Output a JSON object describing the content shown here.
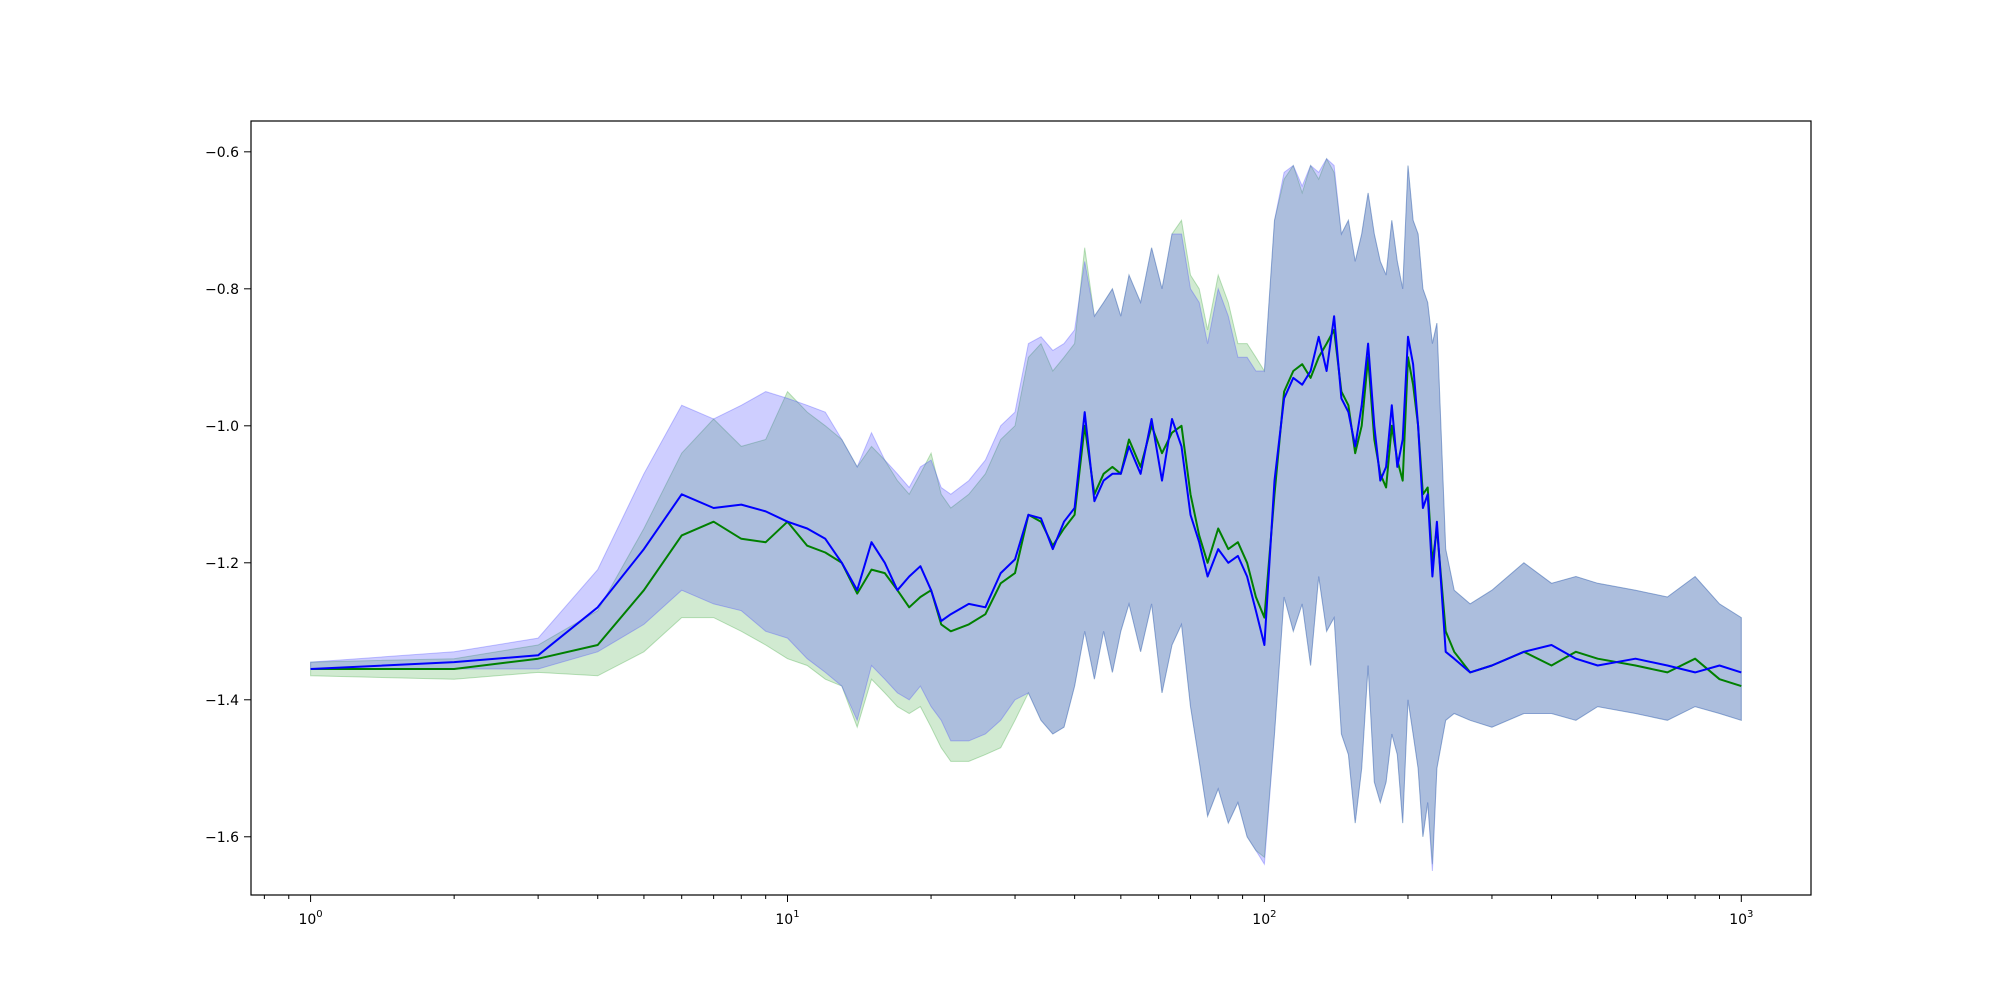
{
  "chart_data": {
    "type": "line",
    "title": "",
    "xlabel": "",
    "ylabel": "",
    "xscale": "log",
    "xlim": [
      0.75,
      1400
    ],
    "ylim": [
      -1.685,
      -0.555
    ],
    "grid": false,
    "legend": "none",
    "x_ticks": [
      {
        "base": "10",
        "exp": "0",
        "value": 1
      },
      {
        "base": "10",
        "exp": "1",
        "value": 10
      },
      {
        "base": "10",
        "exp": "2",
        "value": 100
      },
      {
        "base": "10",
        "exp": "3",
        "value": 1000
      }
    ],
    "y_ticks": [
      {
        "label": "−0.6",
        "value": -0.6
      },
      {
        "label": "−0.8",
        "value": -0.8
      },
      {
        "label": "−1.0",
        "value": -1.0
      },
      {
        "label": "−1.2",
        "value": -1.2
      },
      {
        "label": "−1.4",
        "value": -1.4
      },
      {
        "label": "−1.6",
        "value": -1.6
      }
    ],
    "series": [
      {
        "color": "#008000",
        "band_color": "#2ca02c",
        "x": [
          1,
          2,
          3,
          4,
          5,
          6,
          7,
          8,
          9,
          10,
          11,
          12,
          13,
          14,
          15,
          16,
          17,
          18,
          19,
          20,
          21,
          22,
          24,
          26,
          28,
          30,
          32,
          34,
          36,
          38,
          40,
          42,
          44,
          46,
          48,
          50,
          52,
          55,
          58,
          61,
          64,
          67,
          70,
          73,
          76,
          80,
          84,
          88,
          92,
          96,
          100,
          105,
          110,
          115,
          120,
          125,
          130,
          135,
          140,
          145,
          150,
          155,
          160,
          165,
          170,
          175,
          180,
          185,
          190,
          195,
          200,
          205,
          210,
          215,
          220,
          225,
          230,
          240,
          250,
          270,
          300,
          350,
          400,
          450,
          500,
          600,
          700,
          800,
          900,
          1000
        ],
        "y": [
          -1.355,
          -1.355,
          -1.34,
          -1.32,
          -1.24,
          -1.16,
          -1.14,
          -1.165,
          -1.17,
          -1.14,
          -1.175,
          -1.185,
          -1.2,
          -1.245,
          -1.21,
          -1.215,
          -1.24,
          -1.265,
          -1.25,
          -1.24,
          -1.29,
          -1.3,
          -1.29,
          -1.275,
          -1.23,
          -1.215,
          -1.13,
          -1.14,
          -1.175,
          -1.15,
          -1.13,
          -1.0,
          -1.1,
          -1.07,
          -1.06,
          -1.07,
          -1.02,
          -1.06,
          -1.0,
          -1.04,
          -1.01,
          -1.0,
          -1.1,
          -1.16,
          -1.2,
          -1.15,
          -1.18,
          -1.17,
          -1.2,
          -1.25,
          -1.28,
          -1.1,
          -0.95,
          -0.92,
          -0.91,
          -0.93,
          -0.9,
          -0.88,
          -0.86,
          -0.95,
          -0.97,
          -1.04,
          -1.0,
          -0.9,
          -1.02,
          -1.07,
          -1.09,
          -1.0,
          -1.05,
          -1.08,
          -0.9,
          -0.94,
          -1.0,
          -1.1,
          -1.09,
          -1.2,
          -1.15,
          -1.3,
          -1.33,
          -1.36,
          -1.35,
          -1.33,
          -1.35,
          -1.33,
          -1.34,
          -1.35,
          -1.36,
          -1.34,
          -1.37,
          -1.38
        ],
        "lower": [
          -1.365,
          -1.37,
          -1.36,
          -1.365,
          -1.33,
          -1.28,
          -1.28,
          -1.3,
          -1.32,
          -1.34,
          -1.35,
          -1.37,
          -1.38,
          -1.44,
          -1.37,
          -1.39,
          -1.41,
          -1.42,
          -1.41,
          -1.44,
          -1.47,
          -1.49,
          -1.49,
          -1.48,
          -1.47,
          -1.43,
          -1.39,
          -1.43,
          -1.45,
          -1.44,
          -1.38,
          -1.3,
          -1.37,
          -1.3,
          -1.36,
          -1.3,
          -1.26,
          -1.33,
          -1.26,
          -1.39,
          -1.32,
          -1.29,
          -1.41,
          -1.49,
          -1.57,
          -1.53,
          -1.58,
          -1.55,
          -1.6,
          -1.62,
          -1.63,
          -1.45,
          -1.25,
          -1.3,
          -1.26,
          -1.35,
          -1.22,
          -1.3,
          -1.28,
          -1.45,
          -1.48,
          -1.58,
          -1.5,
          -1.35,
          -1.52,
          -1.55,
          -1.52,
          -1.45,
          -1.48,
          -1.58,
          -1.4,
          -1.45,
          -1.5,
          -1.6,
          -1.55,
          -1.64,
          -1.5,
          -1.43,
          -1.42,
          -1.43,
          -1.44,
          -1.42,
          -1.42,
          -1.43,
          -1.41,
          -1.42,
          -1.43,
          -1.41,
          -1.42,
          -1.43
        ],
        "upper": [
          -1.345,
          -1.34,
          -1.32,
          -1.27,
          -1.15,
          -1.04,
          -0.99,
          -1.03,
          -1.02,
          -0.95,
          -0.98,
          -1.0,
          -1.02,
          -1.06,
          -1.03,
          -1.05,
          -1.08,
          -1.1,
          -1.07,
          -1.04,
          -1.1,
          -1.12,
          -1.1,
          -1.07,
          -1.02,
          -1.0,
          -0.9,
          -0.88,
          -0.92,
          -0.9,
          -0.88,
          -0.74,
          -0.84,
          -0.82,
          -0.8,
          -0.84,
          -0.78,
          -0.82,
          -0.74,
          -0.8,
          -0.72,
          -0.7,
          -0.78,
          -0.8,
          -0.86,
          -0.78,
          -0.82,
          -0.88,
          -0.88,
          -0.9,
          -0.92,
          -0.7,
          -0.64,
          -0.62,
          -0.66,
          -0.62,
          -0.64,
          -0.61,
          -0.63,
          -0.72,
          -0.7,
          -0.76,
          -0.72,
          -0.66,
          -0.72,
          -0.76,
          -0.78,
          -0.7,
          -0.76,
          -0.8,
          -0.62,
          -0.7,
          -0.72,
          -0.8,
          -0.82,
          -0.88,
          -0.85,
          -1.18,
          -1.24,
          -1.26,
          -1.24,
          -1.2,
          -1.23,
          -1.22,
          -1.23,
          -1.24,
          -1.25,
          -1.22,
          -1.26,
          -1.28
        ]
      },
      {
        "color": "#0000ff",
        "band_color": "#4040ff",
        "x": [
          1,
          2,
          3,
          4,
          5,
          6,
          7,
          8,
          9,
          10,
          11,
          12,
          13,
          14,
          15,
          16,
          17,
          18,
          19,
          20,
          21,
          22,
          24,
          26,
          28,
          30,
          32,
          34,
          36,
          38,
          40,
          42,
          44,
          46,
          48,
          50,
          52,
          55,
          58,
          61,
          64,
          67,
          70,
          73,
          76,
          80,
          84,
          88,
          92,
          96,
          100,
          105,
          110,
          115,
          120,
          125,
          130,
          135,
          140,
          145,
          150,
          155,
          160,
          165,
          170,
          175,
          180,
          185,
          190,
          195,
          200,
          205,
          210,
          215,
          220,
          225,
          230,
          240,
          250,
          270,
          300,
          350,
          400,
          450,
          500,
          600,
          700,
          800,
          900,
          1000
        ],
        "y": [
          -1.355,
          -1.345,
          -1.335,
          -1.265,
          -1.18,
          -1.1,
          -1.12,
          -1.115,
          -1.125,
          -1.14,
          -1.15,
          -1.165,
          -1.2,
          -1.24,
          -1.17,
          -1.2,
          -1.24,
          -1.22,
          -1.205,
          -1.24,
          -1.285,
          -1.275,
          -1.26,
          -1.265,
          -1.215,
          -1.195,
          -1.13,
          -1.135,
          -1.18,
          -1.14,
          -1.12,
          -0.98,
          -1.11,
          -1.08,
          -1.07,
          -1.07,
          -1.03,
          -1.07,
          -0.99,
          -1.08,
          -0.99,
          -1.03,
          -1.13,
          -1.17,
          -1.22,
          -1.18,
          -1.2,
          -1.19,
          -1.22,
          -1.27,
          -1.32,
          -1.08,
          -0.96,
          -0.93,
          -0.94,
          -0.92,
          -0.87,
          -0.92,
          -0.84,
          -0.96,
          -0.98,
          -1.03,
          -0.97,
          -0.88,
          -1.0,
          -1.08,
          -1.06,
          -0.97,
          -1.06,
          -1.02,
          -0.87,
          -0.91,
          -1.0,
          -1.12,
          -1.1,
          -1.22,
          -1.14,
          -1.33,
          -1.34,
          -1.36,
          -1.35,
          -1.33,
          -1.32,
          -1.34,
          -1.35,
          -1.34,
          -1.35,
          -1.36,
          -1.35,
          -1.36
        ],
        "lower": [
          -1.355,
          -1.355,
          -1.355,
          -1.33,
          -1.29,
          -1.24,
          -1.26,
          -1.27,
          -1.3,
          -1.31,
          -1.34,
          -1.36,
          -1.38,
          -1.43,
          -1.35,
          -1.37,
          -1.39,
          -1.4,
          -1.38,
          -1.41,
          -1.43,
          -1.46,
          -1.46,
          -1.45,
          -1.43,
          -1.4,
          -1.39,
          -1.43,
          -1.45,
          -1.44,
          -1.38,
          -1.3,
          -1.37,
          -1.3,
          -1.36,
          -1.3,
          -1.26,
          -1.33,
          -1.26,
          -1.39,
          -1.32,
          -1.29,
          -1.41,
          -1.49,
          -1.57,
          -1.53,
          -1.58,
          -1.55,
          -1.6,
          -1.62,
          -1.64,
          -1.45,
          -1.25,
          -1.3,
          -1.26,
          -1.35,
          -1.22,
          -1.3,
          -1.28,
          -1.45,
          -1.48,
          -1.58,
          -1.5,
          -1.35,
          -1.52,
          -1.55,
          -1.52,
          -1.45,
          -1.48,
          -1.58,
          -1.4,
          -1.45,
          -1.5,
          -1.6,
          -1.55,
          -1.65,
          -1.5,
          -1.43,
          -1.42,
          -1.43,
          -1.44,
          -1.42,
          -1.42,
          -1.43,
          -1.41,
          -1.42,
          -1.43,
          -1.41,
          -1.42,
          -1.43
        ],
        "upper": [
          -1.345,
          -1.33,
          -1.31,
          -1.21,
          -1.07,
          -0.97,
          -0.99,
          -0.97,
          -0.95,
          -0.96,
          -0.97,
          -0.98,
          -1.02,
          -1.06,
          -1.01,
          -1.05,
          -1.07,
          -1.09,
          -1.06,
          -1.05,
          -1.09,
          -1.1,
          -1.08,
          -1.05,
          -1.0,
          -0.98,
          -0.88,
          -0.87,
          -0.89,
          -0.88,
          -0.86,
          -0.76,
          -0.84,
          -0.82,
          -0.8,
          -0.84,
          -0.78,
          -0.82,
          -0.74,
          -0.8,
          -0.72,
          -0.72,
          -0.8,
          -0.82,
          -0.88,
          -0.8,
          -0.84,
          -0.9,
          -0.9,
          -0.92,
          -0.92,
          -0.7,
          -0.63,
          -0.62,
          -0.65,
          -0.62,
          -0.63,
          -0.61,
          -0.62,
          -0.72,
          -0.7,
          -0.76,
          -0.72,
          -0.66,
          -0.72,
          -0.76,
          -0.78,
          -0.7,
          -0.76,
          -0.8,
          -0.62,
          -0.7,
          -0.72,
          -0.8,
          -0.82,
          -0.88,
          -0.85,
          -1.18,
          -1.24,
          -1.26,
          -1.24,
          -1.2,
          -1.23,
          -1.22,
          -1.23,
          -1.24,
          -1.25,
          -1.22,
          -1.26,
          -1.28
        ]
      }
    ]
  }
}
